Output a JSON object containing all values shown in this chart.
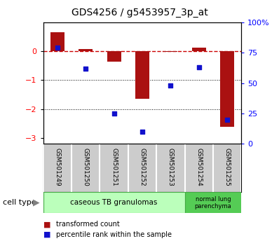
{
  "title": "GDS4256 / g5453957_3p_at",
  "samples": [
    "GSM501249",
    "GSM501250",
    "GSM501251",
    "GSM501252",
    "GSM501253",
    "GSM501254",
    "GSM501255"
  ],
  "transformed_count": [
    0.65,
    0.07,
    -0.35,
    -1.65,
    -0.02,
    0.12,
    -2.6
  ],
  "percentile_rank": [
    79,
    62,
    25,
    10,
    48,
    63,
    20
  ],
  "ylim_left": [
    -3.2,
    1.0
  ],
  "ylim_right": [
    0,
    100
  ],
  "yticks_left": [
    -3,
    -2,
    -1,
    0
  ],
  "yticks_right": [
    0,
    25,
    50,
    75,
    100
  ],
  "ytick_right_labels": [
    "0",
    "25",
    "50",
    "75",
    "100%"
  ],
  "bar_color": "#aa1111",
  "dot_color": "#1111cc",
  "zero_line_color": "#cc0000",
  "grid_line_color": "#000000",
  "group1_label": "caseous TB granulomas",
  "group1_indices": [
    0,
    1,
    2,
    3,
    4
  ],
  "group1_color": "#bbffbb",
  "group2_label": "normal lung\nparenchyma",
  "group2_indices": [
    5,
    6
  ],
  "group2_color": "#55cc55",
  "bar_width": 0.5,
  "background_color": "#ffffff"
}
